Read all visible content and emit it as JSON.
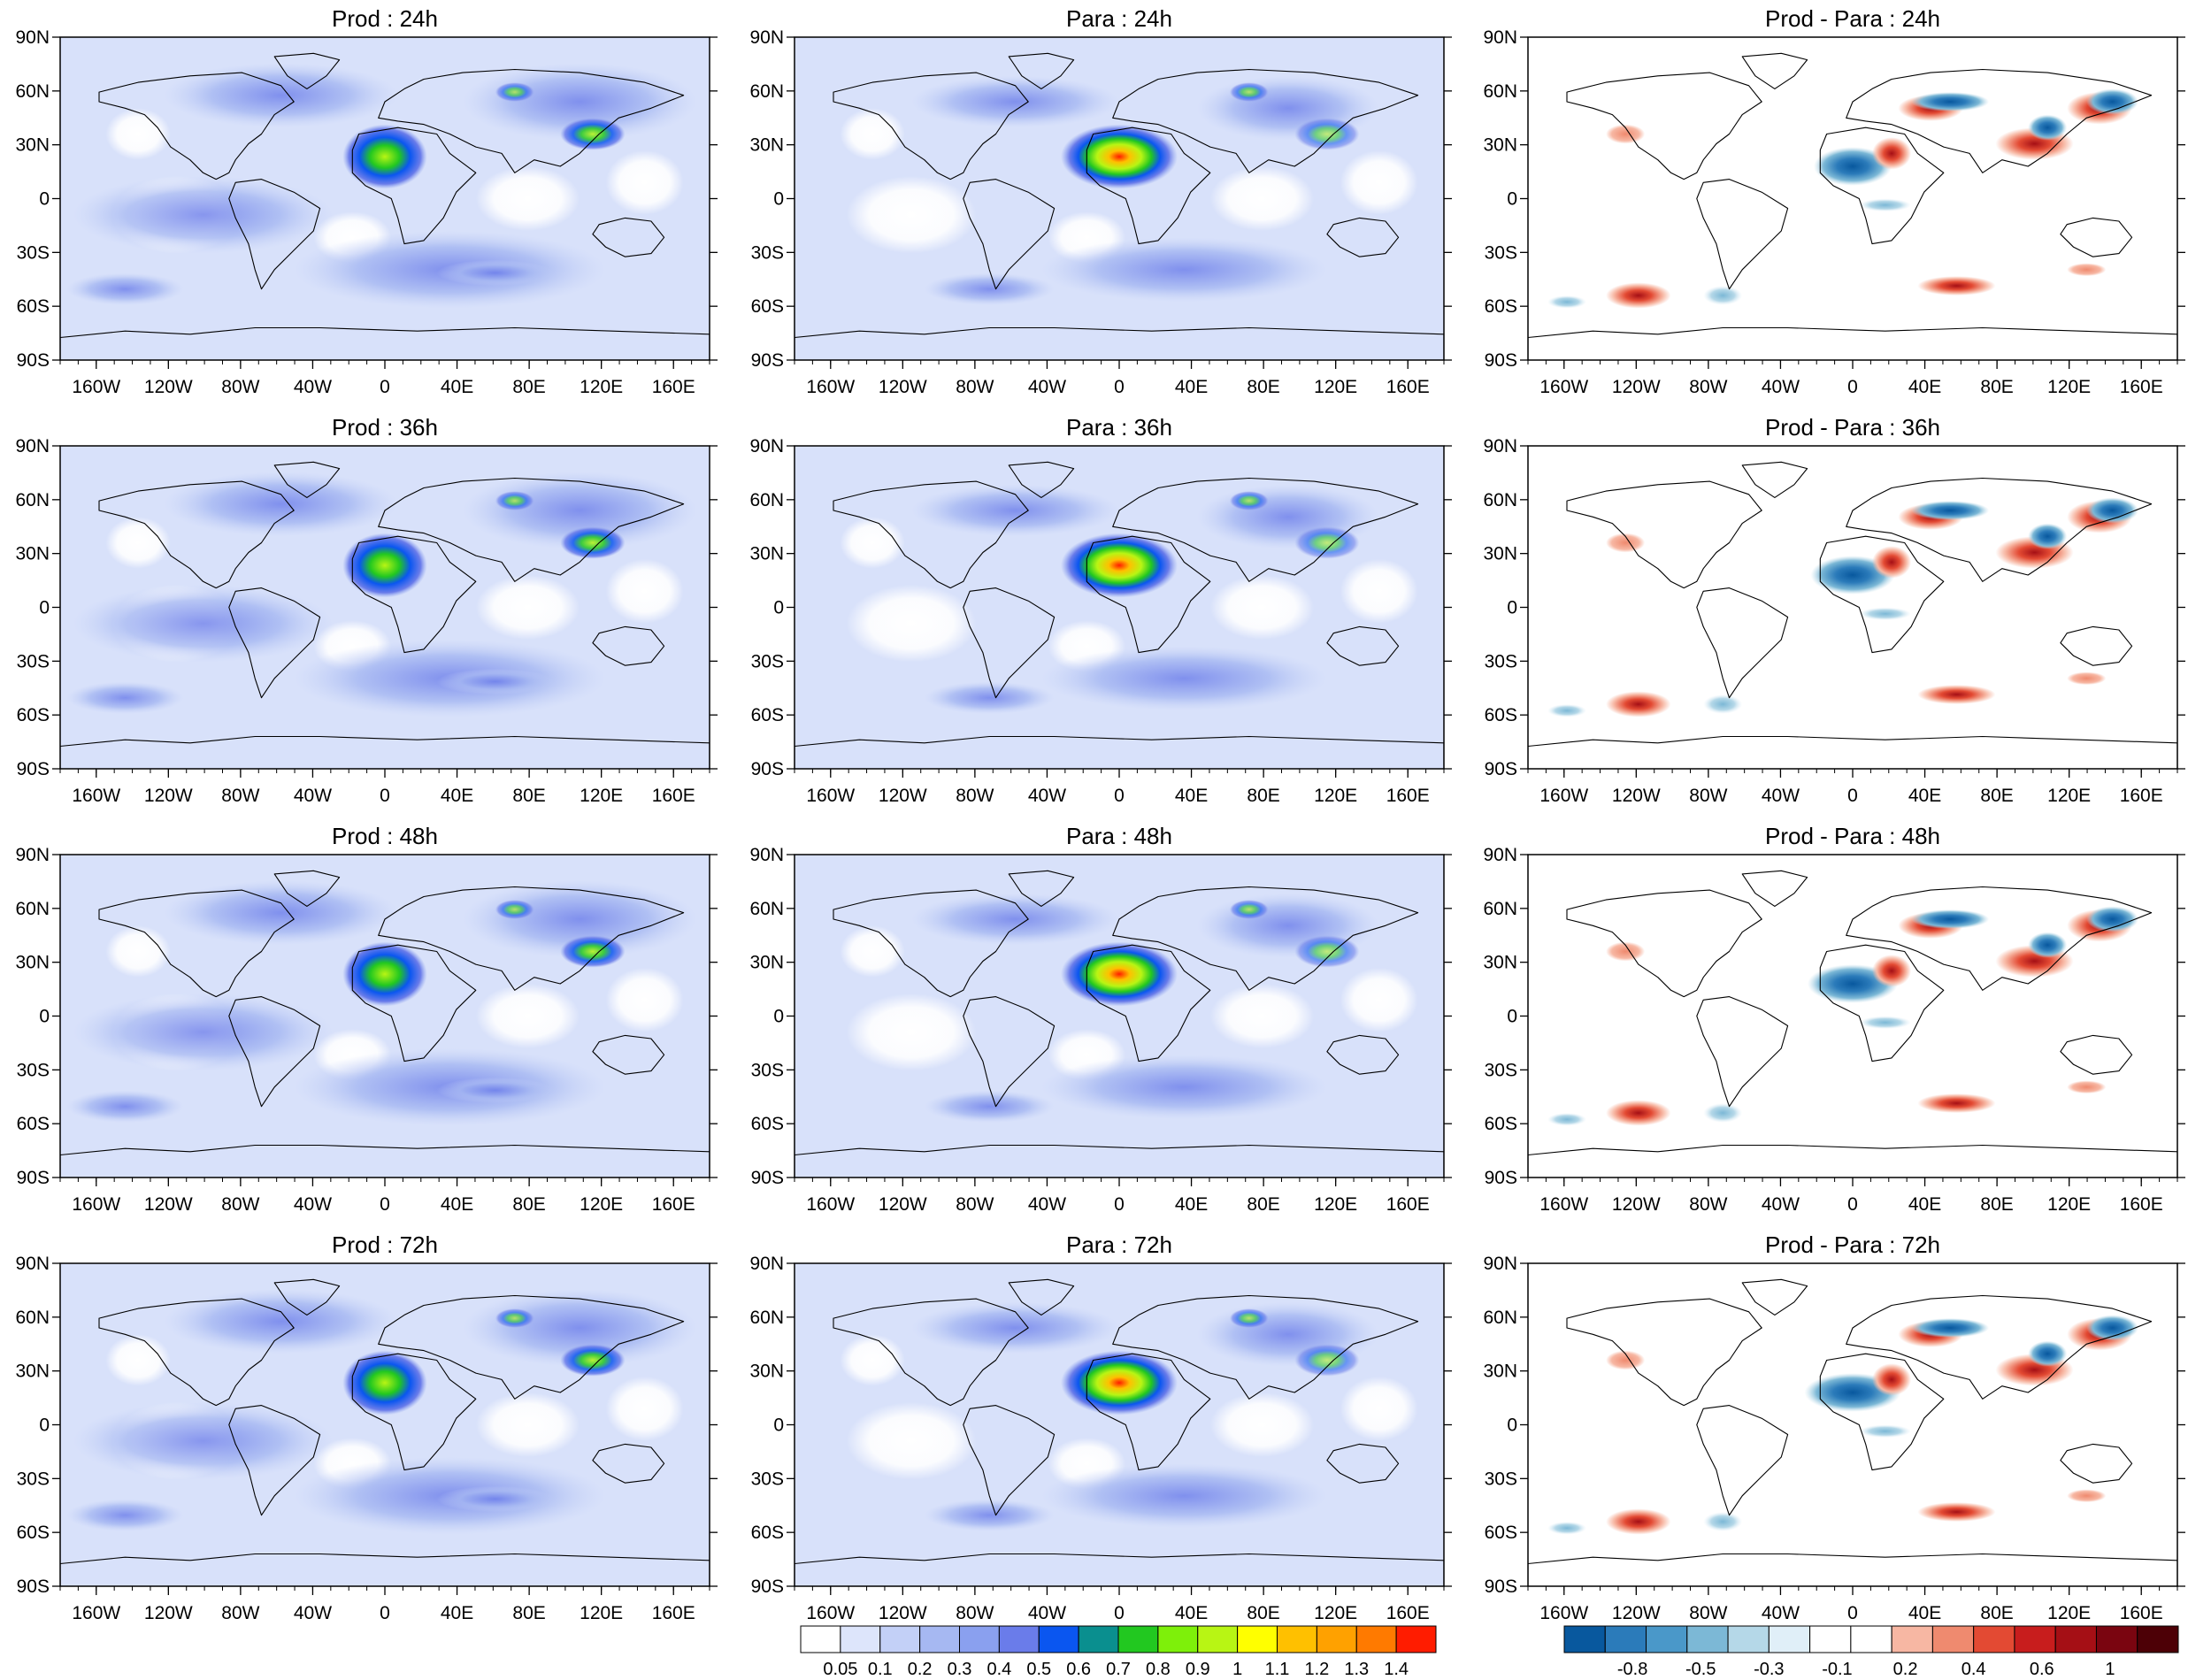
{
  "figure": {
    "columns": [
      "Prod",
      "Para",
      "Prod - Para"
    ],
    "rows": [
      "24h",
      "36h",
      "48h",
      "72h"
    ],
    "panel_titles": [
      [
        "Prod : 24h",
        "Para : 24h",
        "Prod - Para : 24h"
      ],
      [
        "Prod : 36h",
        "Para : 36h",
        "Prod - Para : 36h"
      ],
      [
        "Prod : 48h",
        "Para : 48h",
        "Prod - Para : 48h"
      ],
      [
        "Prod : 72h",
        "Para : 72h",
        "Prod - Para : 72h"
      ]
    ]
  },
  "axes": {
    "lat_labels": [
      "90N",
      "60N",
      "30N",
      "0",
      "30S",
      "60S",
      "90S"
    ],
    "lon_labels": [
      "160W",
      "120W",
      "80W",
      "40W",
      "0",
      "40E",
      "80E",
      "120E",
      "160E"
    ]
  },
  "colorbars": {
    "field": {
      "labels": [
        "0.05",
        "0.1",
        "0.2",
        "0.3",
        "0.4",
        "0.5",
        "0.6",
        "0.7",
        "0.8",
        "0.9",
        "1",
        "1.1",
        "1.2",
        "1.3",
        "1.4"
      ],
      "colors": [
        "#ffffff",
        "#dde5fb",
        "#c3d0f7",
        "#a6b8f2",
        "#8aa0ef",
        "#6a7cea",
        "#0a56f0",
        "#0a8f8f",
        "#22c820",
        "#7ef00a",
        "#b8f514",
        "#ffff00",
        "#ffc000",
        "#ffa100",
        "#ff7a00",
        "#ff1c00"
      ]
    },
    "diff": {
      "labels": [
        "-0.8",
        "-0.5",
        "-0.3",
        "-0.1",
        "0.2",
        "0.4",
        "0.6",
        "1"
      ],
      "colors": [
        "#08589e",
        "#2b7bba",
        "#4a98c9",
        "#7cb8d6",
        "#b5d8e8",
        "#e0eff8",
        "#ffffff",
        "#ffffff",
        "#f7b7a3",
        "#ef8a6f",
        "#e34a33",
        "#c81d1d",
        "#a50f15",
        "#7a0510",
        "#4d0006"
      ]
    }
  },
  "fields": {
    "base_color": "#d8e1fa",
    "clear_color": "#ffffff",
    "para_dust_peak": 1.4,
    "prod_dust_peak": 0.95,
    "diff_sahara": -0.7,
    "diff_asia": 0.5
  }
}
